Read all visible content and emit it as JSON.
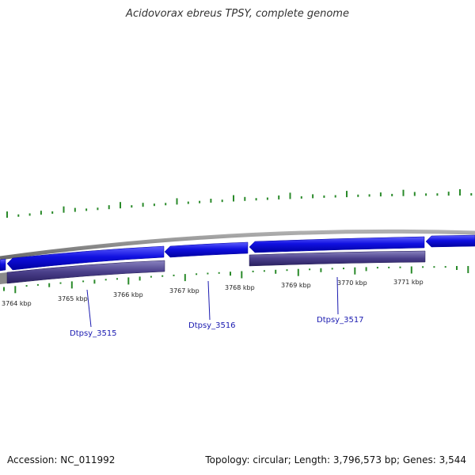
{
  "title": "Acidovorax ebreus TPSY, complete genome",
  "accession": "Accession: NC_011992",
  "summary": "Topology: circular; Length: 3,796,573 bp; Genes: 3,544",
  "scale": {
    "unit": "kbp",
    "ticks": [
      "3764 kbp",
      "3765 kbp",
      "3766 kbp",
      "3767 kbp",
      "3768 kbp",
      "3769 kbp",
      "3770 kbp",
      "3771 kbp"
    ]
  },
  "gene_labels": [
    "Dtpsy_3515",
    "Dtpsy_3516",
    "Dtpsy_3517"
  ],
  "colors": {
    "forward_gene": "#1010e0",
    "reverse_gene": "#4a3f8a",
    "backbone": "#888888",
    "tick": "#2a8a2a",
    "label": "#1a1ab0"
  }
}
